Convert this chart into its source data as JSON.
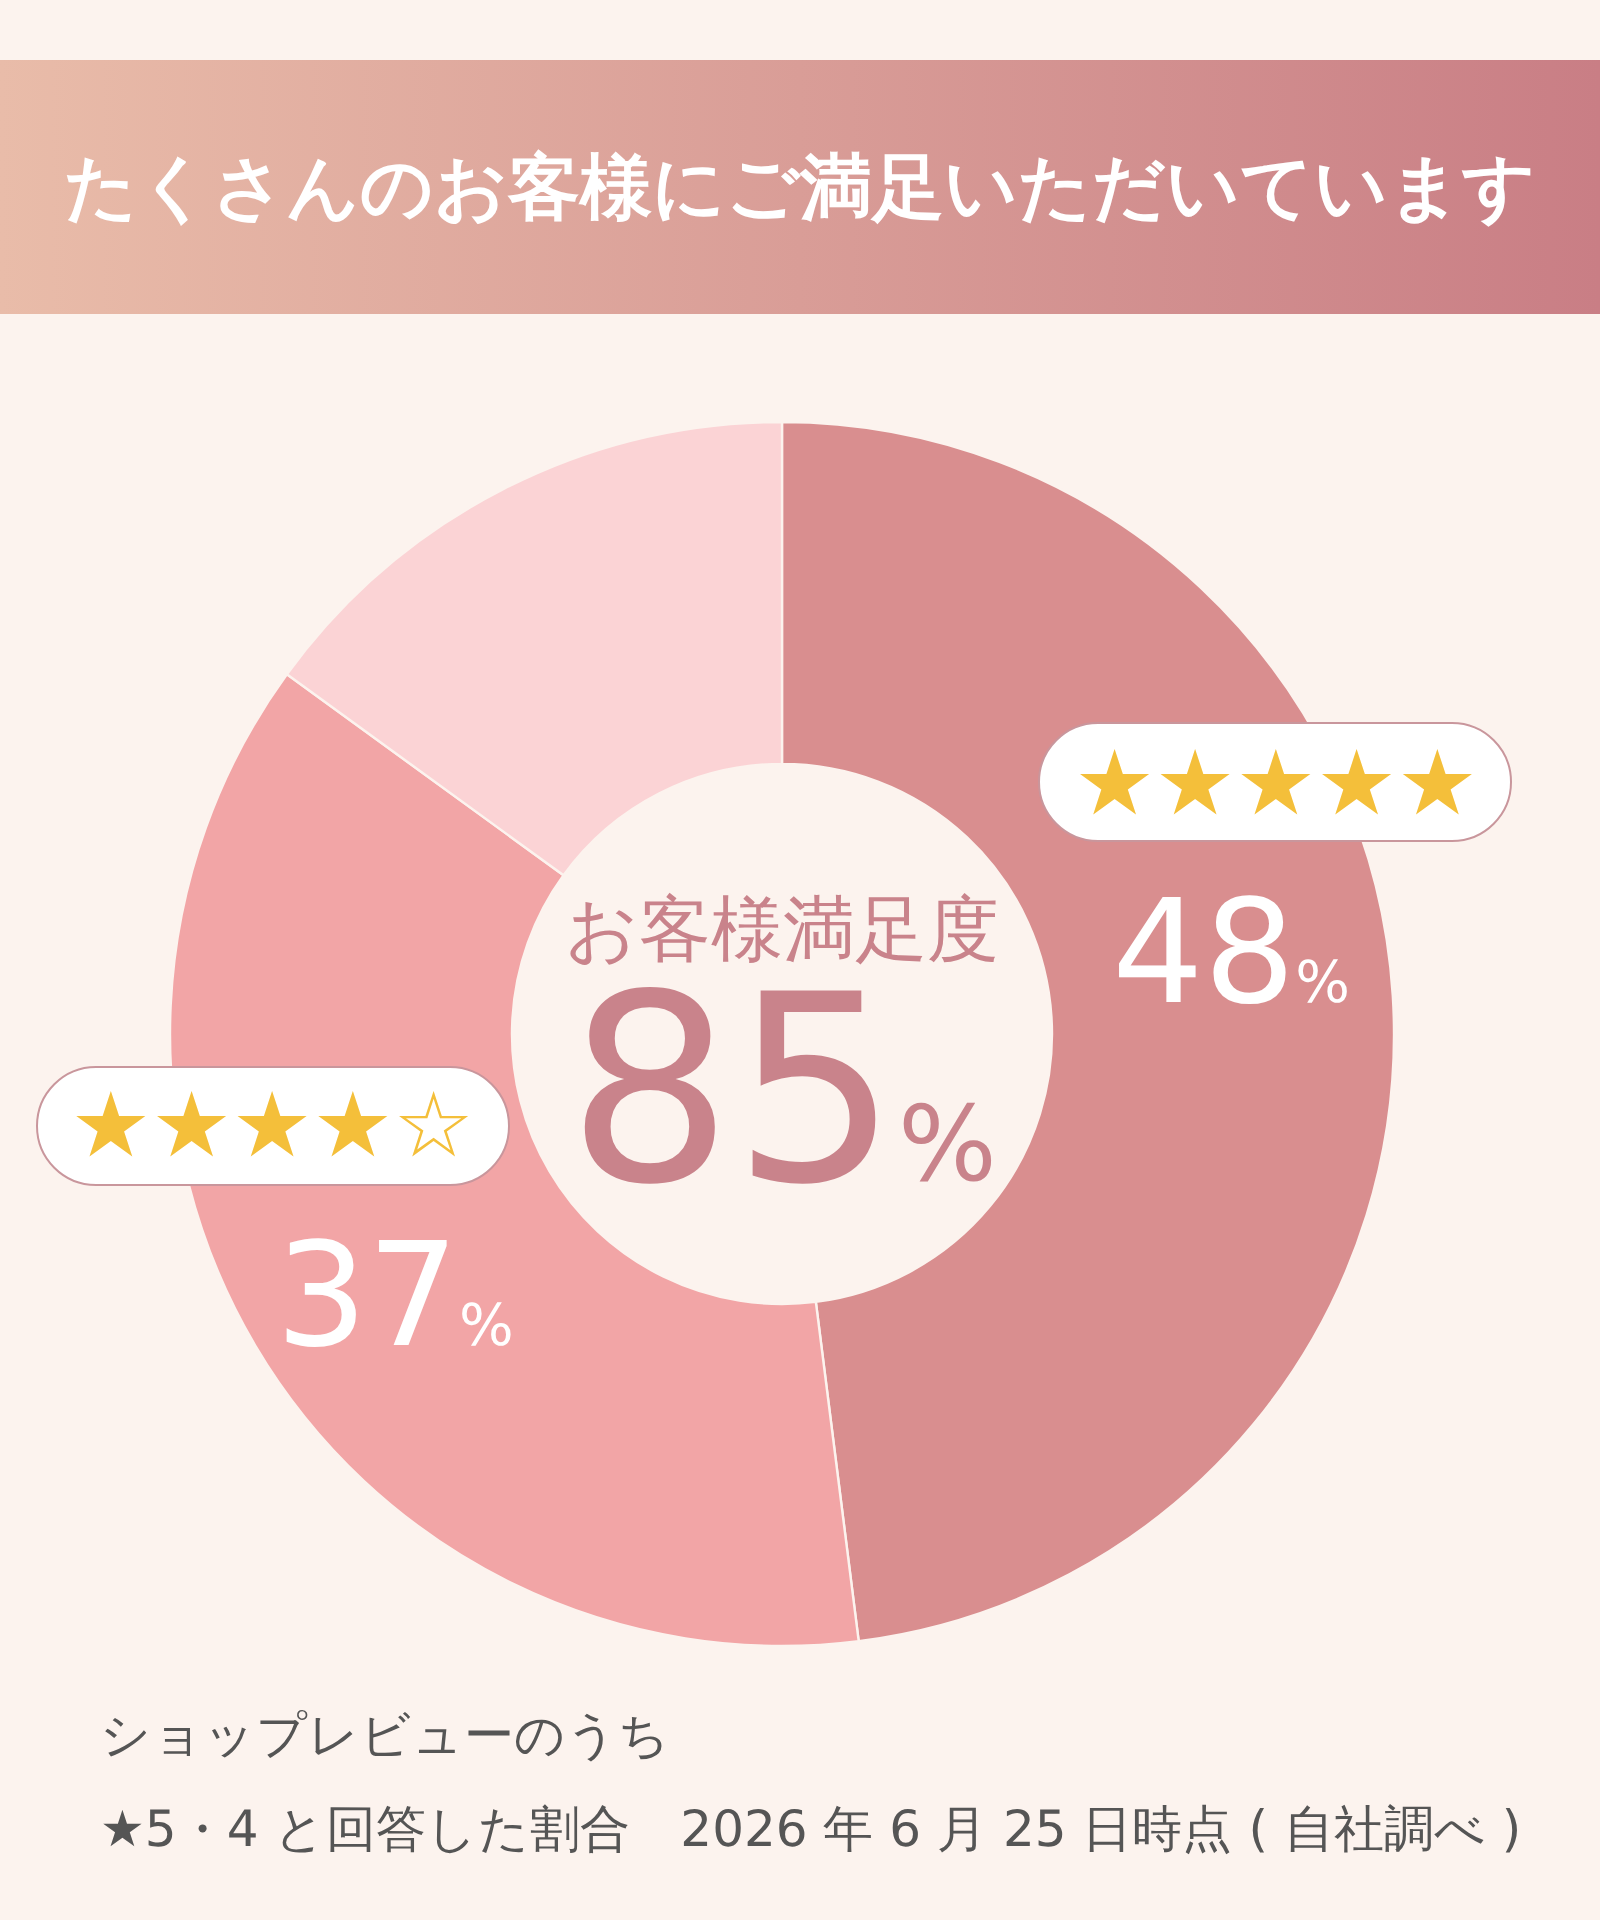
{
  "chart_data": {
    "type": "donut",
    "title": "たくさんのお客様にご満足いただいています",
    "categories": [
      "★★★★★",
      "★★★★☆",
      null
    ],
    "values": [
      48,
      37,
      15
    ],
    "colors": [
      "#d98e8f",
      "#f2a5a6",
      "#fbd3d5"
    ],
    "value_labels": [
      "48%",
      "37%",
      null
    ],
    "annotations": [
      "お客様満足度",
      "85%",
      "ショップレビューのうち",
      "★5・4 と回答した割合　2026 年 6 月 25 日時点 ( 自社調べ )"
    ]
  }
}
